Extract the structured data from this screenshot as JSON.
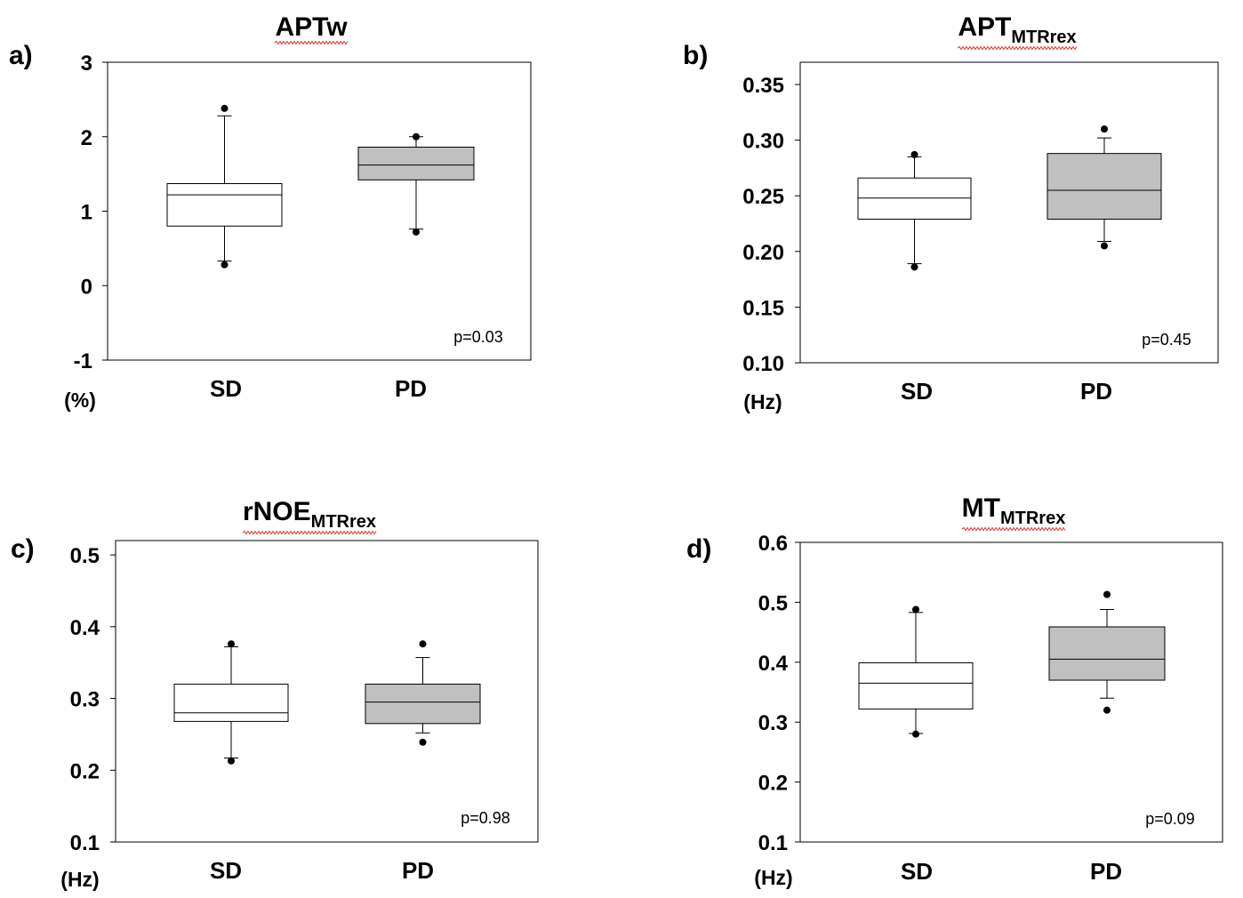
{
  "chart_data": [
    {
      "type": "box",
      "panel_label": "a)",
      "title": "APTw",
      "title_sub": "",
      "unit": "(%)",
      "ylim": [
        -1,
        3
      ],
      "yticks": [
        "3",
        "2",
        "1",
        "0",
        "-1"
      ],
      "ytick_values": [
        3,
        2,
        1,
        0,
        -1
      ],
      "categories": [
        "SD",
        "PD"
      ],
      "p_value": "p=0.03",
      "colors": {
        "SD": "#ffffff",
        "PD": "#c0c0c0"
      },
      "boxes": [
        {
          "group": "SD",
          "whisker_low": 0.33,
          "q1": 0.8,
          "median": 1.22,
          "q3": 1.37,
          "whisker_high": 2.28,
          "outliers": [
            0.28,
            2.38
          ]
        },
        {
          "group": "PD",
          "whisker_low": 0.76,
          "q1": 1.42,
          "median": 1.62,
          "q3": 1.86,
          "whisker_high": 2.0,
          "outliers": [
            0.72,
            2.0
          ]
        }
      ]
    },
    {
      "type": "box",
      "panel_label": "b)",
      "title": "APT",
      "title_sub": "MTRrex",
      "unit": "(Hz)",
      "ylim": [
        0.1,
        0.37
      ],
      "yticks": [
        "0.35",
        "0.30",
        "0.25",
        "0.20",
        "0.15",
        "0.10"
      ],
      "ytick_values": [
        0.35,
        0.3,
        0.25,
        0.2,
        0.15,
        0.1
      ],
      "categories": [
        "SD",
        "PD"
      ],
      "p_value": "p=0.45",
      "colors": {
        "SD": "#ffffff",
        "PD": "#c0c0c0"
      },
      "boxes": [
        {
          "group": "SD",
          "whisker_low": 0.189,
          "q1": 0.229,
          "median": 0.248,
          "q3": 0.266,
          "whisker_high": 0.285,
          "outliers": [
            0.186,
            0.287
          ]
        },
        {
          "group": "PD",
          "whisker_low": 0.209,
          "q1": 0.229,
          "median": 0.255,
          "q3": 0.288,
          "whisker_high": 0.302,
          "outliers": [
            0.205,
            0.31
          ]
        }
      ]
    },
    {
      "type": "box",
      "panel_label": "c)",
      "title": "rNOE",
      "title_sub": "MTRrex",
      "unit": "(Hz)",
      "ylim": [
        0.1,
        0.52
      ],
      "yticks": [
        "0.5",
        "0.4",
        "0.3",
        "0.2",
        "0.1"
      ],
      "ytick_values": [
        0.5,
        0.4,
        0.3,
        0.2,
        0.1
      ],
      "categories": [
        "SD",
        "PD"
      ],
      "p_value": "p=0.98",
      "colors": {
        "SD": "#ffffff",
        "PD": "#c0c0c0"
      },
      "boxes": [
        {
          "group": "SD",
          "whisker_low": 0.217,
          "q1": 0.268,
          "median": 0.28,
          "q3": 0.32,
          "whisker_high": 0.372,
          "outliers": [
            0.213,
            0.376
          ]
        },
        {
          "group": "PD",
          "whisker_low": 0.252,
          "q1": 0.265,
          "median": 0.295,
          "q3": 0.32,
          "whisker_high": 0.357,
          "outliers": [
            0.239,
            0.376
          ]
        }
      ]
    },
    {
      "type": "box",
      "panel_label": "d)",
      "title": "MT",
      "title_sub": "MTRrex",
      "unit": "(Hz)",
      "ylim": [
        0.1,
        0.6
      ],
      "yticks": [
        "0.6",
        "0.5",
        "0.4",
        "0.3",
        "0.2",
        "0.1"
      ],
      "ytick_values": [
        0.6,
        0.5,
        0.4,
        0.3,
        0.2,
        0.1
      ],
      "categories": [
        "SD",
        "PD"
      ],
      "p_value": "p=0.09",
      "colors": {
        "SD": "#ffffff",
        "PD": "#c0c0c0"
      },
      "boxes": [
        {
          "group": "SD",
          "whisker_low": 0.281,
          "q1": 0.322,
          "median": 0.365,
          "q3": 0.399,
          "whisker_high": 0.483,
          "outliers": [
            0.28,
            0.488
          ]
        },
        {
          "group": "PD",
          "whisker_low": 0.34,
          "q1": 0.37,
          "median": 0.405,
          "q3": 0.459,
          "whisker_high": 0.488,
          "outliers": [
            0.32,
            0.513
          ]
        }
      ]
    }
  ]
}
